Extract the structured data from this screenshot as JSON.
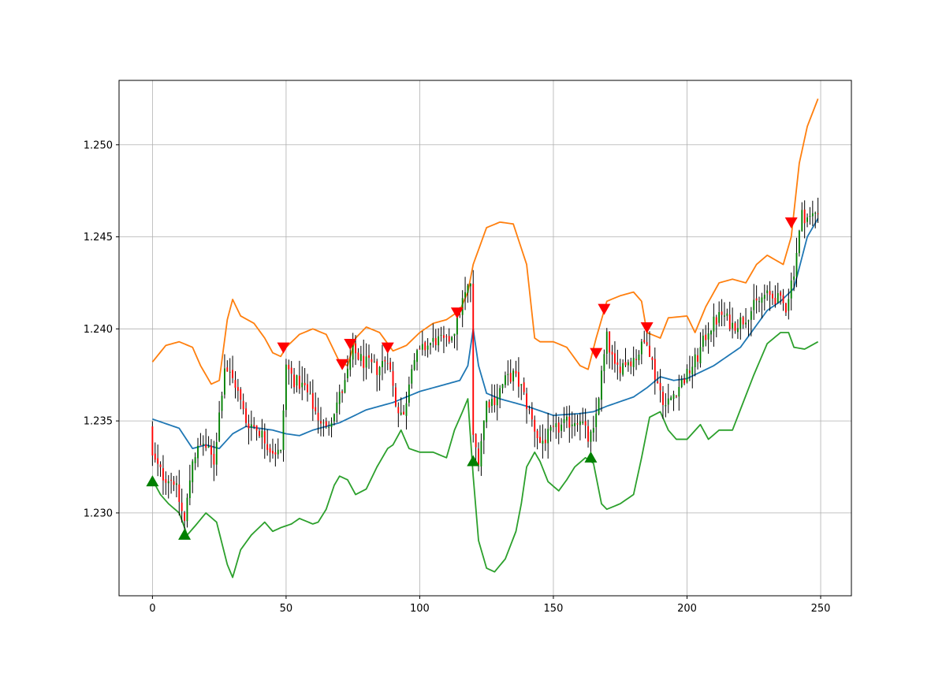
{
  "chart_data": {
    "type": "candlestick",
    "title": "",
    "xlabel": "",
    "ylabel": "",
    "xlim": [
      -12.5,
      261.5
    ],
    "ylim": [
      1.2255,
      1.2535
    ],
    "grid": true,
    "xticks": [
      0,
      50,
      100,
      150,
      200,
      250
    ],
    "xtick_labels": [
      "0",
      "50",
      "100",
      "150",
      "200",
      "250"
    ],
    "yticks": [
      1.23,
      1.235,
      1.24,
      1.245,
      1.25
    ],
    "ytick_labels": [
      "1.230",
      "1.235",
      "1.240",
      "1.245",
      "1.250"
    ],
    "colors": {
      "up_candle": "#008000",
      "down_candle": "#ff0000",
      "wick": "#000000",
      "middle_band": "#1f77b4",
      "upper_band": "#ff7f0e",
      "lower_band": "#2ca02c",
      "buy_marker": "#008000",
      "sell_marker": "#ff0000",
      "grid": "#b0b0b0"
    },
    "close_anchors": [
      [
        0,
        1.233
      ],
      [
        4,
        1.232
      ],
      [
        8,
        1.2318
      ],
      [
        12,
        1.2295
      ],
      [
        15,
        1.233
      ],
      [
        19,
        1.2338
      ],
      [
        23,
        1.2328
      ],
      [
        27,
        1.238
      ],
      [
        31,
        1.237
      ],
      [
        35,
        1.235
      ],
      [
        40,
        1.2345
      ],
      [
        44,
        1.2335
      ],
      [
        48,
        1.2332
      ],
      [
        50,
        1.238
      ],
      [
        53,
        1.2372
      ],
      [
        57,
        1.2368
      ],
      [
        61,
        1.2355
      ],
      [
        65,
        1.2345
      ],
      [
        69,
        1.236
      ],
      [
        72,
        1.237
      ],
      [
        75,
        1.2388
      ],
      [
        79,
        1.2382
      ],
      [
        84,
        1.2378
      ],
      [
        88,
        1.2385
      ],
      [
        91,
        1.236
      ],
      [
        94,
        1.2352
      ],
      [
        97,
        1.2382
      ],
      [
        102,
        1.239
      ],
      [
        106,
        1.2394
      ],
      [
        110,
        1.2392
      ],
      [
        113,
        1.24
      ],
      [
        116,
        1.2415
      ],
      [
        119,
        1.2425
      ],
      [
        120,
        1.234
      ],
      [
        122,
        1.233
      ],
      [
        125,
        1.236
      ],
      [
        128,
        1.2362
      ],
      [
        132,
        1.2372
      ],
      [
        135,
        1.2375
      ],
      [
        138,
        1.2368
      ],
      [
        142,
        1.235
      ],
      [
        145,
        1.2338
      ],
      [
        149,
        1.2343
      ],
      [
        153,
        1.2347
      ],
      [
        157,
        1.235
      ],
      [
        160,
        1.2352
      ],
      [
        163,
        1.234
      ],
      [
        165,
        1.2343
      ],
      [
        168,
        1.2375
      ],
      [
        170,
        1.2395
      ],
      [
        173,
        1.2378
      ],
      [
        177,
        1.2382
      ],
      [
        181,
        1.2385
      ],
      [
        185,
        1.2395
      ],
      [
        188,
        1.2375
      ],
      [
        192,
        1.2358
      ],
      [
        196,
        1.2367
      ],
      [
        200,
        1.2375
      ],
      [
        204,
        1.2385
      ],
      [
        208,
        1.24
      ],
      [
        213,
        1.2408
      ],
      [
        217,
        1.2402
      ],
      [
        221,
        1.2405
      ],
      [
        225,
        1.2412
      ],
      [
        229,
        1.2418
      ],
      [
        233,
        1.2417
      ],
      [
        237,
        1.2412
      ],
      [
        240,
        1.2432
      ],
      [
        243,
        1.2462
      ],
      [
        246,
        1.246
      ],
      [
        249,
        1.2465
      ]
    ],
    "series": [
      {
        "name": "",
        "color": "#1f77b4",
        "points": [
          [
            0,
            1.2351
          ],
          [
            10,
            1.2346
          ],
          [
            15,
            1.2335
          ],
          [
            20,
            1.2337
          ],
          [
            25,
            1.2335
          ],
          [
            30,
            1.2343
          ],
          [
            35,
            1.2347
          ],
          [
            45,
            1.2345
          ],
          [
            50,
            1.2343
          ],
          [
            55,
            1.2342
          ],
          [
            60,
            1.2345
          ],
          [
            70,
            1.2349
          ],
          [
            80,
            1.2356
          ],
          [
            90,
            1.236
          ],
          [
            100,
            1.2366
          ],
          [
            110,
            1.237
          ],
          [
            115,
            1.2372
          ],
          [
            118,
            1.238
          ],
          [
            120,
            1.24
          ],
          [
            122,
            1.238
          ],
          [
            125,
            1.2365
          ],
          [
            130,
            1.2362
          ],
          [
            140,
            1.2358
          ],
          [
            150,
            1.2353
          ],
          [
            160,
            1.2354
          ],
          [
            165,
            1.2355
          ],
          [
            170,
            1.2358
          ],
          [
            180,
            1.2363
          ],
          [
            185,
            1.2368
          ],
          [
            190,
            1.2374
          ],
          [
            195,
            1.2372
          ],
          [
            200,
            1.2373
          ],
          [
            210,
            1.238
          ],
          [
            220,
            1.239
          ],
          [
            230,
            1.241
          ],
          [
            235,
            1.2415
          ],
          [
            240,
            1.2422
          ],
          [
            245,
            1.245
          ],
          [
            249,
            1.246
          ]
        ]
      },
      {
        "name": "",
        "color": "#ff7f0e",
        "points": [
          [
            0,
            1.2382
          ],
          [
            5,
            1.2391
          ],
          [
            10,
            1.2393
          ],
          [
            15,
            1.239
          ],
          [
            18,
            1.238
          ],
          [
            22,
            1.237
          ],
          [
            25,
            1.2372
          ],
          [
            28,
            1.2405
          ],
          [
            30,
            1.2416
          ],
          [
            33,
            1.2407
          ],
          [
            38,
            1.2403
          ],
          [
            42,
            1.2395
          ],
          [
            45,
            1.2387
          ],
          [
            48,
            1.2385
          ],
          [
            50,
            1.239
          ],
          [
            55,
            1.2397
          ],
          [
            60,
            1.24
          ],
          [
            65,
            1.2397
          ],
          [
            70,
            1.2382
          ],
          [
            73,
            1.238
          ],
          [
            76,
            1.2395
          ],
          [
            80,
            1.2401
          ],
          [
            85,
            1.2398
          ],
          [
            90,
            1.2388
          ],
          [
            95,
            1.2391
          ],
          [
            100,
            1.2398
          ],
          [
            105,
            1.2403
          ],
          [
            110,
            1.2405
          ],
          [
            115,
            1.241
          ],
          [
            118,
            1.242
          ],
          [
            120,
            1.2435
          ],
          [
            125,
            1.2455
          ],
          [
            130,
            1.2458
          ],
          [
            135,
            1.2457
          ],
          [
            140,
            1.2435
          ],
          [
            143,
            1.2395
          ],
          [
            145,
            1.2393
          ],
          [
            150,
            1.2393
          ],
          [
            155,
            1.239
          ],
          [
            160,
            1.238
          ],
          [
            163,
            1.2378
          ],
          [
            166,
            1.2395
          ],
          [
            170,
            1.2415
          ],
          [
            175,
            1.2418
          ],
          [
            180,
            1.242
          ],
          [
            183,
            1.2415
          ],
          [
            185,
            1.2398
          ],
          [
            190,
            1.2395
          ],
          [
            193,
            1.2406
          ],
          [
            200,
            1.2407
          ],
          [
            203,
            1.2398
          ],
          [
            207,
            1.2412
          ],
          [
            212,
            1.2425
          ],
          [
            217,
            1.2427
          ],
          [
            222,
            1.2425
          ],
          [
            226,
            1.2435
          ],
          [
            230,
            1.244
          ],
          [
            236,
            1.2435
          ],
          [
            239,
            1.245
          ],
          [
            242,
            1.249
          ],
          [
            245,
            1.251
          ],
          [
            249,
            1.2525
          ]
        ]
      },
      {
        "name": "",
        "color": "#2ca02c",
        "points": [
          [
            0,
            1.2318
          ],
          [
            3,
            1.231
          ],
          [
            6,
            1.2305
          ],
          [
            10,
            1.23
          ],
          [
            13,
            1.2288
          ],
          [
            16,
            1.2293
          ],
          [
            20,
            1.23
          ],
          [
            24,
            1.2295
          ],
          [
            28,
            1.2272
          ],
          [
            30,
            1.2265
          ],
          [
            33,
            1.228
          ],
          [
            37,
            1.2288
          ],
          [
            42,
            1.2295
          ],
          [
            45,
            1.229
          ],
          [
            48,
            1.2292
          ],
          [
            52,
            1.2294
          ],
          [
            55,
            1.2297
          ],
          [
            60,
            1.2294
          ],
          [
            62,
            1.2295
          ],
          [
            65,
            1.2302
          ],
          [
            68,
            1.2315
          ],
          [
            70,
            1.232
          ],
          [
            73,
            1.2318
          ],
          [
            76,
            1.231
          ],
          [
            80,
            1.2313
          ],
          [
            84,
            1.2325
          ],
          [
            88,
            1.2335
          ],
          [
            90,
            1.2337
          ],
          [
            93,
            1.2345
          ],
          [
            96,
            1.2335
          ],
          [
            100,
            1.2333
          ],
          [
            105,
            1.2333
          ],
          [
            110,
            1.233
          ],
          [
            113,
            1.2345
          ],
          [
            116,
            1.2355
          ],
          [
            118,
            1.2362
          ],
          [
            120,
            1.232
          ],
          [
            122,
            1.2285
          ],
          [
            125,
            1.227
          ],
          [
            128,
            1.2268
          ],
          [
            132,
            1.2275
          ],
          [
            136,
            1.229
          ],
          [
            138,
            1.2305
          ],
          [
            140,
            1.2325
          ],
          [
            143,
            1.2333
          ],
          [
            145,
            1.2328
          ],
          [
            148,
            1.2317
          ],
          [
            152,
            1.2312
          ],
          [
            155,
            1.2318
          ],
          [
            158,
            1.2325
          ],
          [
            162,
            1.233
          ],
          [
            165,
            1.2327
          ],
          [
            168,
            1.2305
          ],
          [
            170,
            1.2302
          ],
          [
            175,
            1.2305
          ],
          [
            180,
            1.231
          ],
          [
            183,
            1.233
          ],
          [
            186,
            1.2352
          ],
          [
            190,
            1.2355
          ],
          [
            193,
            1.2345
          ],
          [
            196,
            1.234
          ],
          [
            200,
            1.234
          ],
          [
            205,
            1.2348
          ],
          [
            208,
            1.234
          ],
          [
            212,
            1.2345
          ],
          [
            217,
            1.2345
          ],
          [
            221,
            1.236
          ],
          [
            225,
            1.2375
          ],
          [
            230,
            1.2392
          ],
          [
            235,
            1.2398
          ],
          [
            238,
            1.2398
          ],
          [
            240,
            1.239
          ],
          [
            244,
            1.2389
          ],
          [
            249,
            1.2393
          ]
        ]
      }
    ],
    "buy_markers": [
      [
        0,
        1.2317
      ],
      [
        12,
        1.2288
      ],
      [
        120,
        1.2328
      ],
      [
        164,
        1.233
      ]
    ],
    "sell_markers": [
      [
        49,
        1.239
      ],
      [
        71,
        1.2381
      ],
      [
        74,
        1.2392
      ],
      [
        88,
        1.239
      ],
      [
        114,
        1.2409
      ],
      [
        166,
        1.2387
      ],
      [
        169,
        1.2411
      ],
      [
        185,
        1.2401
      ],
      [
        239,
        1.2458
      ]
    ]
  }
}
